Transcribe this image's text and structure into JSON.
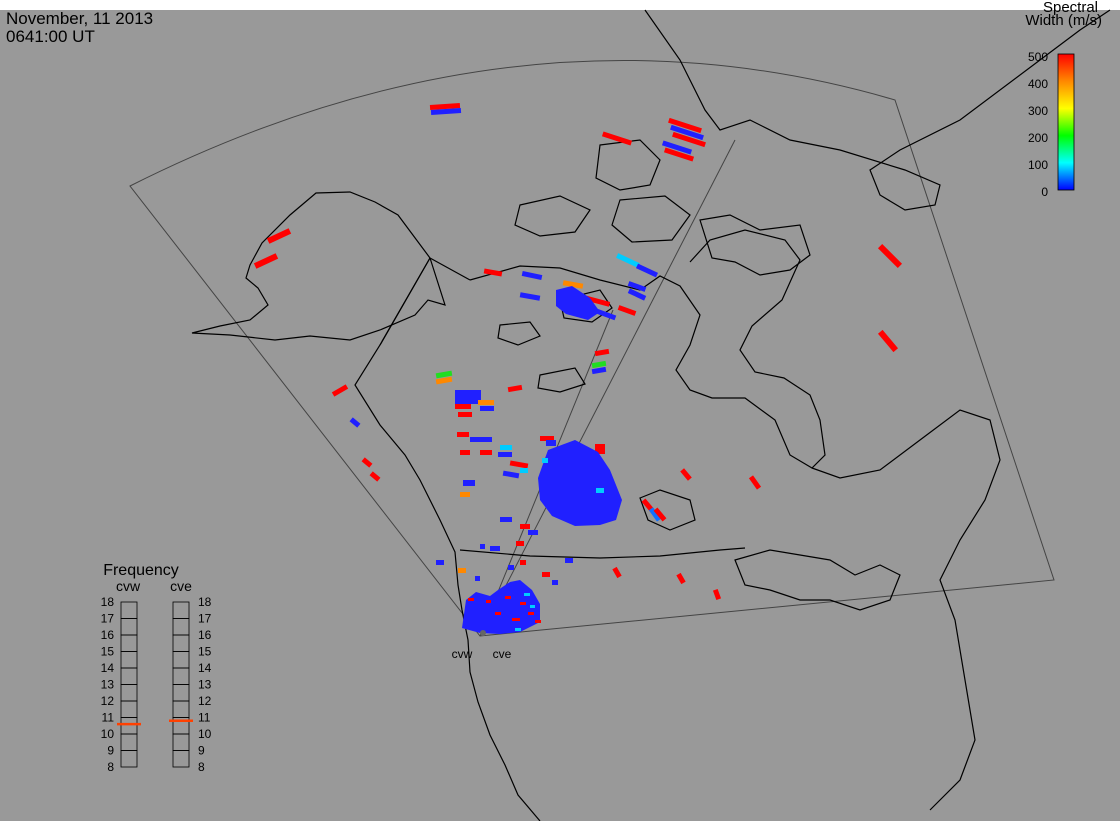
{
  "header": {
    "date": "November, 11 2013",
    "time": "0641:00 UT"
  },
  "colorbar": {
    "title_line1": "Spectral",
    "title_line2": "Width (m/s)",
    "ticks": [
      "500",
      "400",
      "300",
      "200",
      "100",
      "0"
    ],
    "colors": [
      "#ff0000",
      "#ff8800",
      "#ffff00",
      "#00ff00",
      "#00ffff",
      "#0000ff"
    ]
  },
  "frequency": {
    "title": "Frequency",
    "left_label": "cvw",
    "right_label": "cve",
    "ticks": [
      "18",
      "17",
      "16",
      "15",
      "14",
      "13",
      "12",
      "11",
      "10",
      "9",
      "8"
    ],
    "cvw_value": 10.6,
    "cve_value": 10.8,
    "marker_color": "#ff4000"
  },
  "radars": {
    "west_label": "cvw",
    "east_label": "cve"
  },
  "colors": {
    "background": "#999999",
    "lines": "#000000",
    "fov": "#444444"
  }
}
